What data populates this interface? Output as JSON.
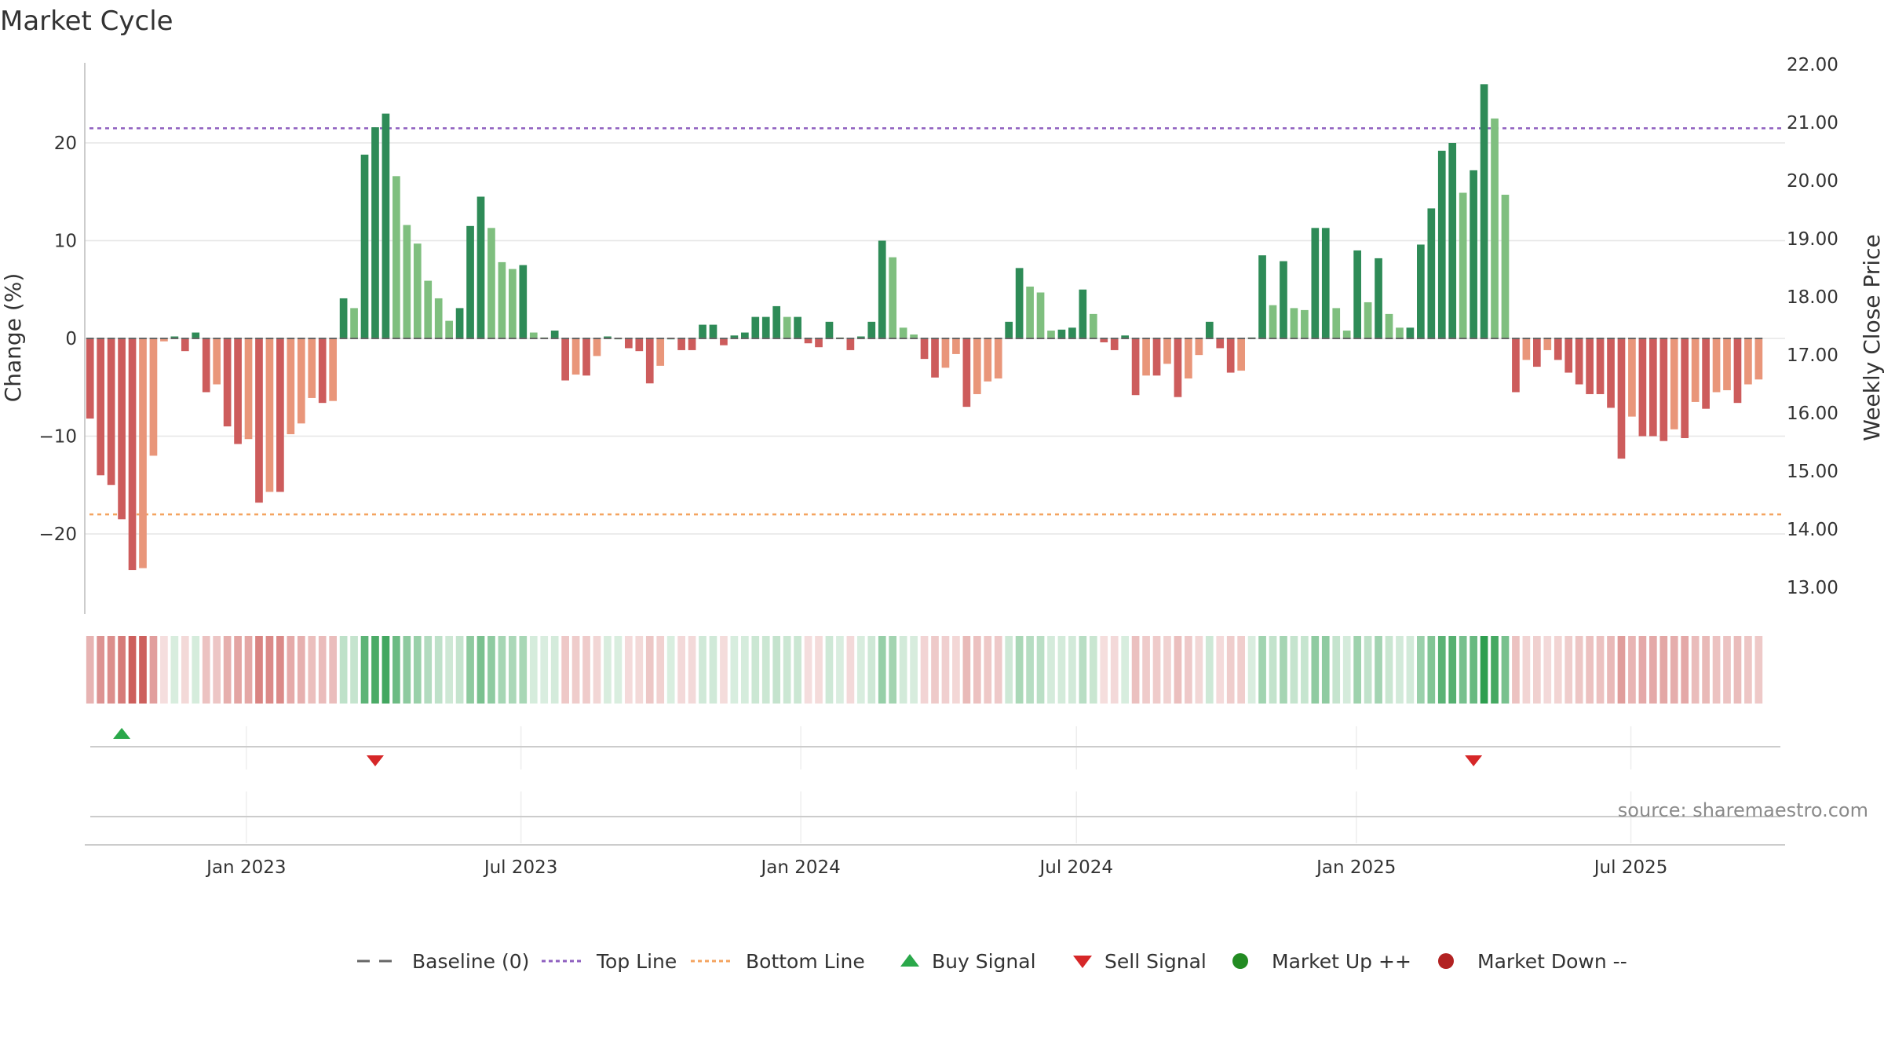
{
  "chart_data": {
    "type": "bar",
    "title": "Market Cycle",
    "ylabel_left": "Change (%)",
    "ylabel_right": "Weekly Close Price",
    "ylim_left": [
      -28,
      28
    ],
    "ylim_right": [
      12.5,
      22.2
    ],
    "yticks_left": [
      {
        "v": 20,
        "label": "20"
      },
      {
        "v": 10,
        "label": "10"
      },
      {
        "v": 0,
        "label": "0"
      },
      {
        "v": -10,
        "label": "−10"
      },
      {
        "v": -20,
        "label": "−20"
      }
    ],
    "yticks_right": [
      "22.00",
      "21.00",
      "20.00",
      "19.00",
      "18.00",
      "17.00",
      "16.00",
      "15.00",
      "14.00",
      "13.00"
    ],
    "x_range": [
      0,
      161
    ],
    "xticks": [
      {
        "label": "Jan 2023",
        "x": 15.3
      },
      {
        "label": "Jul 2023",
        "x": 41.3
      },
      {
        "label": "Jan 2024",
        "x": 67.8
      },
      {
        "label": "Jul 2024",
        "x": 93.9
      },
      {
        "label": "Jan 2025",
        "x": 120.4
      },
      {
        "label": "Jul 2025",
        "x": 146.4
      }
    ],
    "top_line": 21.5,
    "bottom_line": -18,
    "values": [
      -8.2,
      -14,
      -15,
      -18.5,
      -23.7,
      -23.5,
      -12,
      -0.3,
      0.2,
      -1.3,
      0.6,
      -5.5,
      -4.7,
      -9,
      -10.8,
      -10.3,
      -16.8,
      -15.7,
      -15.7,
      -9.8,
      -8.7,
      -6.1,
      -6.6,
      -6.4,
      4.1,
      3.1,
      18.8,
      21.6,
      23,
      16.6,
      11.6,
      9.7,
      5.9,
      4.1,
      1.8,
      3.1,
      11.5,
      14.5,
      11.3,
      7.8,
      7.1,
      7.5,
      0.6,
      0.1,
      0.8,
      -4.3,
      -3.7,
      -3.8,
      -1.8,
      0.2,
      0,
      -1,
      -1.3,
      -4.6,
      -2.8,
      0,
      -1.2,
      -1.2,
      1.4,
      1.4,
      -0.7,
      0.3,
      0.6,
      2.2,
      2.2,
      3.3,
      2.2,
      2.2,
      -0.5,
      -0.9,
      1.7,
      0.1,
      -1.2,
      0.2,
      1.7,
      10,
      8.3,
      1.1,
      0.4,
      -2.1,
      -4,
      -3,
      -1.6,
      -7,
      -5.7,
      -4.4,
      -4.1,
      1.7,
      7.2,
      5.3,
      4.7,
      0.8,
      0.9,
      1.1,
      5,
      2.5,
      -0.4,
      -1.2,
      0.3,
      -5.8,
      -3.8,
      -3.8,
      -2.6,
      -6,
      -4.1,
      -1.7,
      1.7,
      -1,
      -3.5,
      -3.3,
      0.1,
      8.5,
      3.4,
      7.9,
      3.1,
      2.9,
      11.3,
      11.3,
      3.1,
      0.8,
      9,
      3.7,
      8.2,
      2.5,
      1.1,
      1.1,
      9.6,
      13.3,
      19.2,
      20,
      14.9,
      17.2,
      26,
      22.5,
      14.7,
      -5.5,
      -2.2,
      -2.9,
      -1.2,
      -2.2,
      -3.5,
      -4.7,
      -5.7,
      -5.7,
      -7.1,
      -12.3,
      -8,
      -10,
      -10,
      -10.5,
      -9.3,
      -10.2,
      -6.5,
      -7.2,
      -5.5,
      -5.3,
      -6.6,
      -4.7,
      -4.2
    ],
    "buy_signals": [
      {
        "x": 3.5,
        "label": "Buy Signal"
      }
    ],
    "sell_signals": [
      {
        "x": 27.5,
        "label": "Sell Signal"
      },
      {
        "x": 131.5,
        "label": "Sell Signal"
      }
    ],
    "colors": {
      "up_strong": "#2e8b57",
      "up_light": "#7fbf7f",
      "down_strong": "#cd5c5c",
      "down_light": "#e9967a",
      "top_line": "#8e5fbf",
      "bottom_line": "#f4a460",
      "buy": "#2aa84a",
      "sell": "#d62728",
      "market_up": "#228b22",
      "market_down": "#b22222",
      "baseline": "#666666"
    },
    "source": "source: sharemaestro.com",
    "legend": [
      {
        "key": "baseline",
        "label": "Baseline (0)"
      },
      {
        "key": "top",
        "label": "Top Line"
      },
      {
        "key": "bottom",
        "label": "Bottom Line"
      },
      {
        "key": "buy",
        "label": "Buy Signal"
      },
      {
        "key": "sell",
        "label": "Sell Signal"
      },
      {
        "key": "up",
        "label": "Market Up ++"
      },
      {
        "key": "down",
        "label": "Market Down --"
      }
    ]
  }
}
